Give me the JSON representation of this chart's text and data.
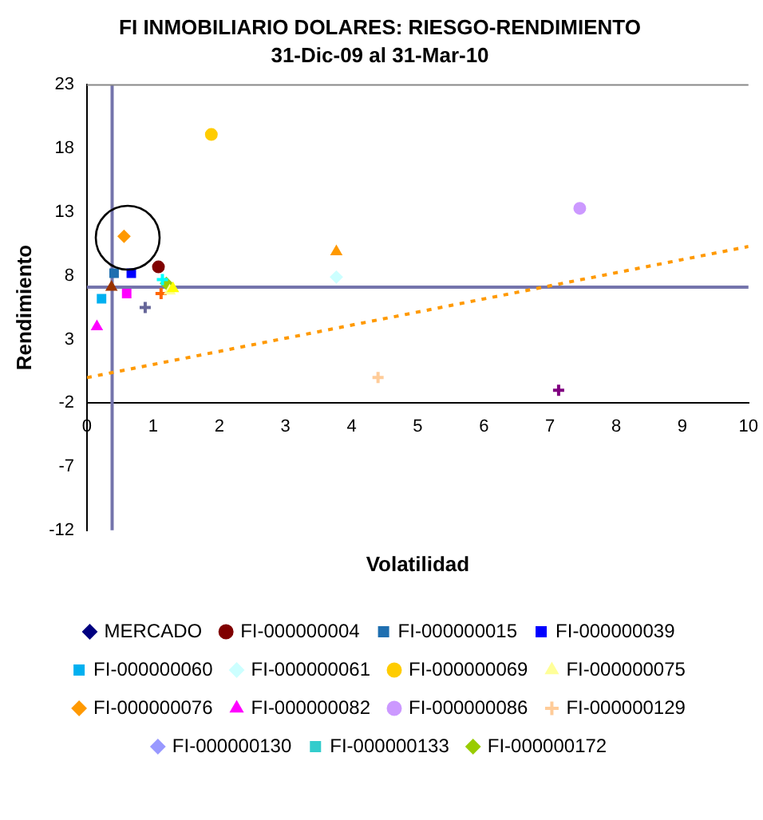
{
  "chart_data": {
    "type": "scatter",
    "title": "FI INMOBILIARIO DOLARES: RIESGO-RENDIMIENTO",
    "subtitle": "31-Dic-09 al 31-Mar-10",
    "xlabel": "Volatilidad",
    "ylabel": "Rendimiento",
    "xlim": [
      0,
      10
    ],
    "xticks": [
      0,
      1,
      2,
      3,
      4,
      5,
      6,
      7,
      8,
      9,
      10
    ],
    "ylim": [
      -12,
      23
    ],
    "yticks": [
      -12,
      -7,
      -2,
      3,
      8,
      13,
      18,
      23
    ],
    "grid": false,
    "legend": "bottom",
    "ref_lines": [
      {
        "axis": "x",
        "value": 0.38,
        "color": "#7474ac"
      },
      {
        "axis": "y",
        "value": 7.1,
        "color": "#7474ac"
      }
    ],
    "series": [
      {
        "name": "MERCADO",
        "color": "#000080",
        "marker": "diamond",
        "x": [
          null
        ],
        "values": [
          null
        ]
      },
      {
        "color": "#ff00ff",
        "marker": "square",
        "x": [
          0.6
        ],
        "values": [
          6.6
        ]
      },
      {
        "color": "#ffff00",
        "marker": "triangle",
        "x": [
          1.3
        ],
        "values": [
          7.0
        ]
      },
      {
        "color": "#00ffff",
        "marker": "cross",
        "x": [
          1.14
        ],
        "values": [
          7.7
        ]
      },
      {
        "color": "#800080",
        "marker": "cross",
        "x": [
          7.13
        ],
        "values": [
          -1
        ]
      },
      {
        "name": "FI-000000004",
        "color": "#800000",
        "marker": "circle",
        "x": [
          1.08
        ],
        "values": [
          8.7
        ]
      },
      {
        "name": "FI-000000015",
        "color": "#1f6fb0",
        "marker": "square",
        "x": [
          0.41
        ],
        "values": [
          8.2
        ]
      },
      {
        "name": "FI-000000039",
        "color": "#0000ff",
        "marker": "square",
        "x": [
          0.67
        ],
        "values": [
          8.2
        ]
      },
      {
        "name": "FI-000000060",
        "color": "#00b0f0",
        "marker": "square",
        "x": [
          0.22
        ],
        "values": [
          6.2
        ]
      },
      {
        "name": "FI-000000061",
        "color": "#ccffff",
        "marker": "diamond",
        "x": [
          3.77
        ],
        "values": [
          7.9
        ]
      },
      {
        "name": "FI-000000069",
        "color": "#ffcc00",
        "marker": "circle",
        "x": [
          1.88
        ],
        "values": [
          19.1
        ]
      },
      {
        "name": "FI-000000075",
        "color": "#ffff99",
        "marker": "triangle",
        "x": [
          1.25
        ],
        "values": [
          6.8
        ]
      },
      {
        "name": "FI-000000076",
        "color": "#ff9900",
        "marker": "diamond",
        "x": [
          0.56
        ],
        "values": [
          11.1
        ]
      },
      {
        "name": "FI-000000082",
        "color": "#ff00ff",
        "marker": "triangle",
        "x": [
          0.15
        ],
        "values": [
          4.0
        ]
      },
      {
        "name": "FI-000000086",
        "color": "#cc99ff",
        "marker": "circle",
        "x": [
          7.45
        ],
        "values": [
          13.3
        ]
      },
      {
        "name": "FI-000000129",
        "color": "#ffcc99",
        "marker": "cross",
        "x": [
          4.4
        ],
        "values": [
          0
        ]
      },
      {
        "name": "FI-000000130",
        "color": "#9999ff",
        "marker": "diamond",
        "x": [
          null
        ],
        "values": [
          null
        ]
      },
      {
        "name": "FI-000000133",
        "color": "#33cccc",
        "marker": "square",
        "x": [
          null
        ],
        "values": [
          null
        ]
      },
      {
        "name": "FI-000000172",
        "color": "#99cc00",
        "marker": "diamond",
        "x": [
          1.2
        ],
        "values": [
          7.4
        ]
      },
      {
        "color": "#993300",
        "marker": "triangle",
        "x": [
          0.37
        ],
        "values": [
          7.1
        ]
      },
      {
        "color": "#ff9900",
        "marker": "triangle",
        "x": [
          3.77
        ],
        "values": [
          9.9
        ]
      },
      {
        "color": "#ff6600",
        "marker": "cross",
        "x": [
          1.12
        ],
        "values": [
          6.6
        ]
      },
      {
        "color": "#666699",
        "marker": "cross",
        "x": [
          0.88
        ],
        "values": [
          5.5
        ]
      },
      {
        "type": "line",
        "color": "#ff9900",
        "marker": "none",
        "line_style": "dotted",
        "x": [
          0,
          10
        ],
        "values": [
          0,
          10.3
        ]
      }
    ]
  }
}
